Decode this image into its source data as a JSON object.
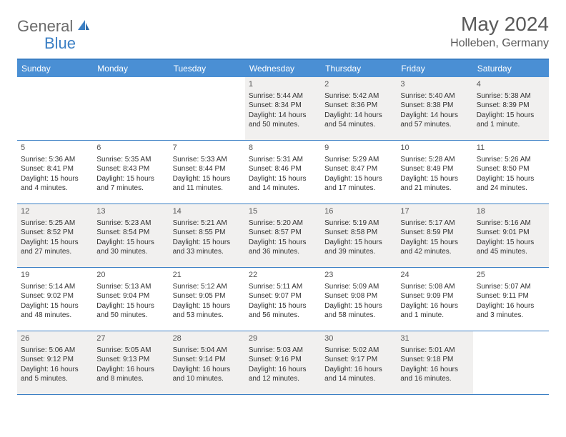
{
  "logo": {
    "text1": "General",
    "text2": "Blue"
  },
  "title": "May 2024",
  "location": "Holleben, Germany",
  "colors": {
    "header_bg": "#4a8fd4",
    "border": "#3b7fc4",
    "alt_bg": "#f1f0ef",
    "text": "#333333",
    "logo_gray": "#6b6b6b",
    "logo_blue": "#3b7fc4"
  },
  "weekdays": [
    "Sunday",
    "Monday",
    "Tuesday",
    "Wednesday",
    "Thursday",
    "Friday",
    "Saturday"
  ],
  "weeks": [
    [
      null,
      null,
      null,
      {
        "n": "1",
        "sr": "Sunrise: 5:44 AM",
        "ss": "Sunset: 8:34 PM",
        "dl1": "Daylight: 14 hours",
        "dl2": "and 50 minutes."
      },
      {
        "n": "2",
        "sr": "Sunrise: 5:42 AM",
        "ss": "Sunset: 8:36 PM",
        "dl1": "Daylight: 14 hours",
        "dl2": "and 54 minutes."
      },
      {
        "n": "3",
        "sr": "Sunrise: 5:40 AM",
        "ss": "Sunset: 8:38 PM",
        "dl1": "Daylight: 14 hours",
        "dl2": "and 57 minutes."
      },
      {
        "n": "4",
        "sr": "Sunrise: 5:38 AM",
        "ss": "Sunset: 8:39 PM",
        "dl1": "Daylight: 15 hours",
        "dl2": "and 1 minute."
      }
    ],
    [
      {
        "n": "5",
        "sr": "Sunrise: 5:36 AM",
        "ss": "Sunset: 8:41 PM",
        "dl1": "Daylight: 15 hours",
        "dl2": "and 4 minutes."
      },
      {
        "n": "6",
        "sr": "Sunrise: 5:35 AM",
        "ss": "Sunset: 8:43 PM",
        "dl1": "Daylight: 15 hours",
        "dl2": "and 7 minutes."
      },
      {
        "n": "7",
        "sr": "Sunrise: 5:33 AM",
        "ss": "Sunset: 8:44 PM",
        "dl1": "Daylight: 15 hours",
        "dl2": "and 11 minutes."
      },
      {
        "n": "8",
        "sr": "Sunrise: 5:31 AM",
        "ss": "Sunset: 8:46 PM",
        "dl1": "Daylight: 15 hours",
        "dl2": "and 14 minutes."
      },
      {
        "n": "9",
        "sr": "Sunrise: 5:29 AM",
        "ss": "Sunset: 8:47 PM",
        "dl1": "Daylight: 15 hours",
        "dl2": "and 17 minutes."
      },
      {
        "n": "10",
        "sr": "Sunrise: 5:28 AM",
        "ss": "Sunset: 8:49 PM",
        "dl1": "Daylight: 15 hours",
        "dl2": "and 21 minutes."
      },
      {
        "n": "11",
        "sr": "Sunrise: 5:26 AM",
        "ss": "Sunset: 8:50 PM",
        "dl1": "Daylight: 15 hours",
        "dl2": "and 24 minutes."
      }
    ],
    [
      {
        "n": "12",
        "sr": "Sunrise: 5:25 AM",
        "ss": "Sunset: 8:52 PM",
        "dl1": "Daylight: 15 hours",
        "dl2": "and 27 minutes."
      },
      {
        "n": "13",
        "sr": "Sunrise: 5:23 AM",
        "ss": "Sunset: 8:54 PM",
        "dl1": "Daylight: 15 hours",
        "dl2": "and 30 minutes."
      },
      {
        "n": "14",
        "sr": "Sunrise: 5:21 AM",
        "ss": "Sunset: 8:55 PM",
        "dl1": "Daylight: 15 hours",
        "dl2": "and 33 minutes."
      },
      {
        "n": "15",
        "sr": "Sunrise: 5:20 AM",
        "ss": "Sunset: 8:57 PM",
        "dl1": "Daylight: 15 hours",
        "dl2": "and 36 minutes."
      },
      {
        "n": "16",
        "sr": "Sunrise: 5:19 AM",
        "ss": "Sunset: 8:58 PM",
        "dl1": "Daylight: 15 hours",
        "dl2": "and 39 minutes."
      },
      {
        "n": "17",
        "sr": "Sunrise: 5:17 AM",
        "ss": "Sunset: 8:59 PM",
        "dl1": "Daylight: 15 hours",
        "dl2": "and 42 minutes."
      },
      {
        "n": "18",
        "sr": "Sunrise: 5:16 AM",
        "ss": "Sunset: 9:01 PM",
        "dl1": "Daylight: 15 hours",
        "dl2": "and 45 minutes."
      }
    ],
    [
      {
        "n": "19",
        "sr": "Sunrise: 5:14 AM",
        "ss": "Sunset: 9:02 PM",
        "dl1": "Daylight: 15 hours",
        "dl2": "and 48 minutes."
      },
      {
        "n": "20",
        "sr": "Sunrise: 5:13 AM",
        "ss": "Sunset: 9:04 PM",
        "dl1": "Daylight: 15 hours",
        "dl2": "and 50 minutes."
      },
      {
        "n": "21",
        "sr": "Sunrise: 5:12 AM",
        "ss": "Sunset: 9:05 PM",
        "dl1": "Daylight: 15 hours",
        "dl2": "and 53 minutes."
      },
      {
        "n": "22",
        "sr": "Sunrise: 5:11 AM",
        "ss": "Sunset: 9:07 PM",
        "dl1": "Daylight: 15 hours",
        "dl2": "and 56 minutes."
      },
      {
        "n": "23",
        "sr": "Sunrise: 5:09 AM",
        "ss": "Sunset: 9:08 PM",
        "dl1": "Daylight: 15 hours",
        "dl2": "and 58 minutes."
      },
      {
        "n": "24",
        "sr": "Sunrise: 5:08 AM",
        "ss": "Sunset: 9:09 PM",
        "dl1": "Daylight: 16 hours",
        "dl2": "and 1 minute."
      },
      {
        "n": "25",
        "sr": "Sunrise: 5:07 AM",
        "ss": "Sunset: 9:11 PM",
        "dl1": "Daylight: 16 hours",
        "dl2": "and 3 minutes."
      }
    ],
    [
      {
        "n": "26",
        "sr": "Sunrise: 5:06 AM",
        "ss": "Sunset: 9:12 PM",
        "dl1": "Daylight: 16 hours",
        "dl2": "and 5 minutes."
      },
      {
        "n": "27",
        "sr": "Sunrise: 5:05 AM",
        "ss": "Sunset: 9:13 PM",
        "dl1": "Daylight: 16 hours",
        "dl2": "and 8 minutes."
      },
      {
        "n": "28",
        "sr": "Sunrise: 5:04 AM",
        "ss": "Sunset: 9:14 PM",
        "dl1": "Daylight: 16 hours",
        "dl2": "and 10 minutes."
      },
      {
        "n": "29",
        "sr": "Sunrise: 5:03 AM",
        "ss": "Sunset: 9:16 PM",
        "dl1": "Daylight: 16 hours",
        "dl2": "and 12 minutes."
      },
      {
        "n": "30",
        "sr": "Sunrise: 5:02 AM",
        "ss": "Sunset: 9:17 PM",
        "dl1": "Daylight: 16 hours",
        "dl2": "and 14 minutes."
      },
      {
        "n": "31",
        "sr": "Sunrise: 5:01 AM",
        "ss": "Sunset: 9:18 PM",
        "dl1": "Daylight: 16 hours",
        "dl2": "and 16 minutes."
      },
      null
    ]
  ]
}
